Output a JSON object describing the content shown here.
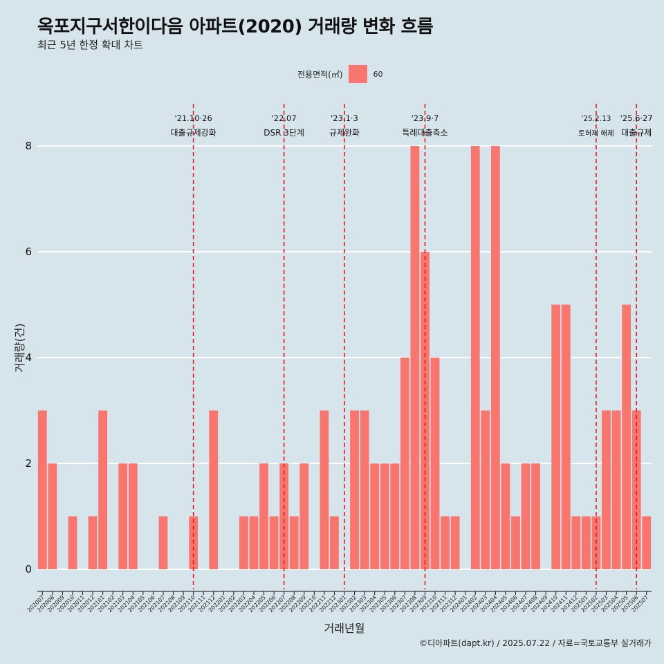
{
  "title": "옥포지구서한이다음 아파트(2020) 거래량 변화 흐름",
  "subtitle": "최근 5년 한정 확대 차트",
  "legend": {
    "title": "전용면적(㎡)",
    "label": "60",
    "color": "#f8766d"
  },
  "caption": "©디아파트(dapt.kr) / 2025.07.22 / 자료=국토교통부 실거래가",
  "chart_data": {
    "type": "bar",
    "xlabel": "거래년월",
    "ylabel": "거래량(건)",
    "ylim": [
      0,
      8
    ],
    "yticks": [
      0,
      2,
      4,
      6,
      8
    ],
    "grid": true,
    "legend_position": "top",
    "bar_color": "#f8766d",
    "categories": [
      "202007",
      "202008",
      "202009",
      "202010",
      "202011",
      "202012",
      "202101",
      "202102",
      "202103",
      "202104",
      "202105",
      "202106",
      "202107",
      "202108",
      "202109",
      "202110",
      "202111",
      "202112",
      "202201",
      "202202",
      "202203",
      "202204",
      "202205",
      "202206",
      "202207",
      "202208",
      "202209",
      "202210",
      "202211",
      "202212",
      "202301",
      "202302",
      "202303",
      "202304",
      "202305",
      "202306",
      "202307",
      "202308",
      "202309",
      "202310",
      "202311",
      "202312",
      "202401",
      "202402",
      "202403",
      "202404",
      "202405",
      "202406",
      "202407",
      "202408",
      "202409",
      "202410",
      "202411",
      "202412",
      "202501",
      "202502",
      "202503",
      "202504",
      "202505",
      "202506",
      "202507"
    ],
    "series": [
      {
        "name": "60",
        "values": [
          3,
          2,
          0,
          1,
          0,
          1,
          3,
          0,
          2,
          2,
          0,
          0,
          1,
          0,
          0,
          1,
          0,
          3,
          0,
          0,
          1,
          1,
          2,
          1,
          2,
          1,
          2,
          0,
          3,
          1,
          0,
          3,
          3,
          2,
          2,
          2,
          4,
          8,
          6,
          4,
          1,
          1,
          0,
          8,
          3,
          8,
          2,
          1,
          2,
          2,
          0,
          5,
          5,
          1,
          1,
          1,
          3,
          3,
          5,
          3,
          1
        ]
      }
    ],
    "events": [
      {
        "date": "'21.10·26",
        "label": "대출규제강화",
        "x": "202110",
        "size": "normal"
      },
      {
        "date": "'22.07",
        "label": "DSR 3단계",
        "x": "202207",
        "size": "normal"
      },
      {
        "date": "'23.1·3",
        "label": "규제완화",
        "x": "202301",
        "size": "normal"
      },
      {
        "date": "'23.9·7",
        "label": "특례대출축소",
        "x": "202309",
        "size": "normal"
      },
      {
        "date": "'25.2.13",
        "label": "토허제 해제",
        "x": "202502",
        "size": "small"
      },
      {
        "date": "'25.6·27",
        "label": "대출규제",
        "x": "202506",
        "size": "normal"
      }
    ]
  }
}
